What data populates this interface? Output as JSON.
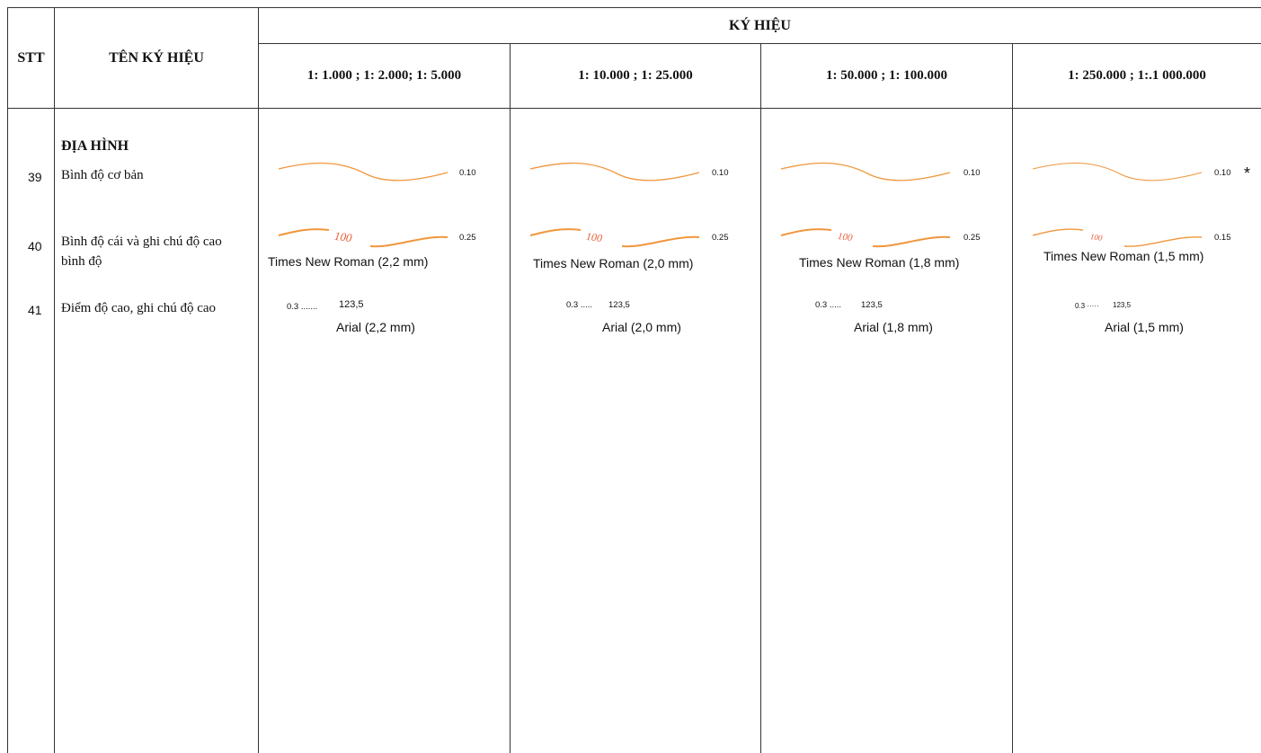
{
  "header": {
    "stt": "STT",
    "name": "TÊN KÝ HIỆU",
    "symbol": "KÝ HIỆU",
    "scales": [
      "1: 1.000 ; 1: 2.000; 1: 5.000",
      "1: 10.000 ; 1: 25.000",
      "1: 50.000 ; 1: 100.000",
      "1: 250.000 ; 1:.1 000.000"
    ]
  },
  "section_title": "ĐỊA HÌNH",
  "rows": [
    {
      "stt": "39",
      "name": "Bình độ cơ bản",
      "widths": [
        "0.10",
        "0.10",
        "0.10",
        "0.10"
      ],
      "mark": "*"
    },
    {
      "stt": "40",
      "name_line1": "Bình độ cái và ghi chú độ cao",
      "name_line2": "bình độ",
      "curve_label": "100",
      "widths": [
        "0.25",
        "0.25",
        "0.25",
        "0.15"
      ],
      "fonts": [
        "Times New Roman (2,2 mm)",
        "Times New Roman (2,0 mm)",
        "Times New Roman (1,8 mm)",
        "Times New Roman (1,5 mm)"
      ]
    },
    {
      "stt": "41",
      "name": "Điểm độ cao, ghi chú độ cao",
      "points": [
        "0.3 .......",
        "0.3  .....",
        "0.3  .....",
        "0.3 ·····"
      ],
      "value": "123,5",
      "fonts": [
        "Arial (2,2 mm)",
        "Arial (2,0 mm)",
        "Arial (1,8 mm)",
        "Arial (1,5 mm)"
      ]
    }
  ],
  "colors": {
    "contour": "#f0963c",
    "label": "#e8603a",
    "lines": "#333333"
  }
}
